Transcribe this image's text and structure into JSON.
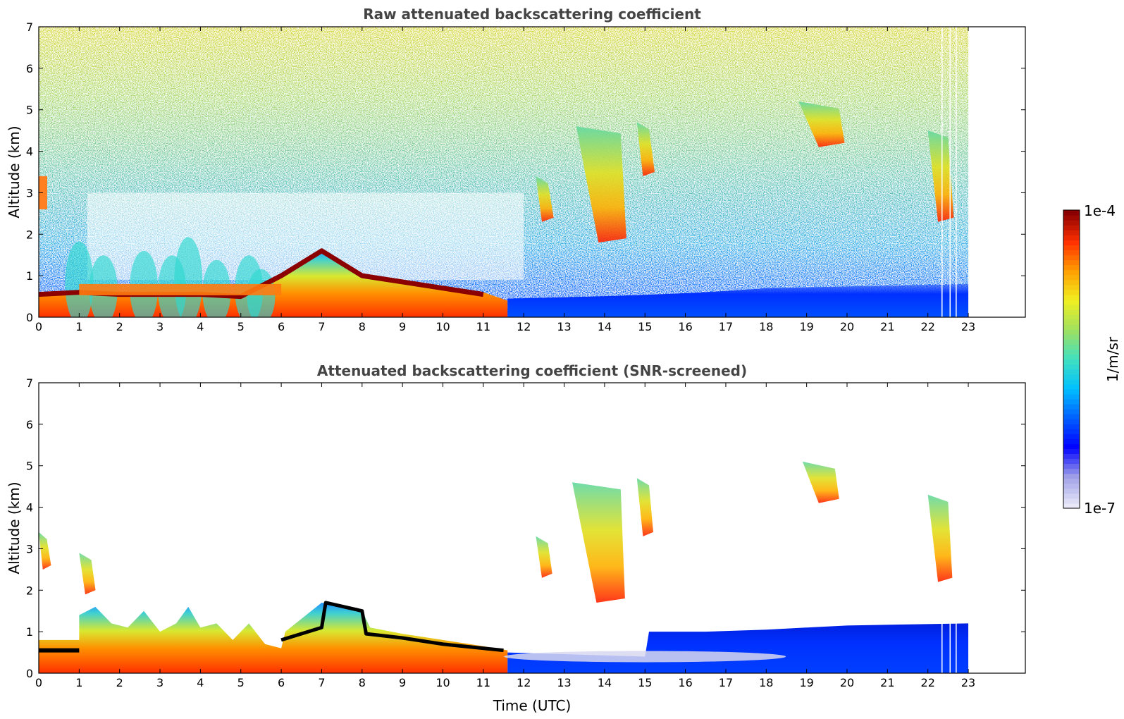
{
  "chart_data": [
    {
      "type": "heatmap",
      "title": "Raw attenuated backscattering coefficient",
      "xlabel": "",
      "ylabel": "Altitude (km)",
      "xlim": [
        0,
        24
      ],
      "ylim": [
        0,
        7
      ],
      "xticks": [
        "0",
        "1",
        "2",
        "3",
        "4",
        "5",
        "6",
        "7",
        "8",
        "9",
        "10",
        "11",
        "12",
        "13",
        "14",
        "15",
        "16",
        "17",
        "18",
        "19",
        "20",
        "21",
        "22",
        "23"
      ],
      "yticks": [
        "0",
        "1",
        "2",
        "3",
        "4",
        "5",
        "6",
        "7"
      ],
      "data_end_hour": 23,
      "boundary_layer_top_km": [
        {
          "x": 0,
          "y": 0.55
        },
        {
          "x": 1,
          "y": 0.6
        },
        {
          "x": 2,
          "y": 0.55
        },
        {
          "x": 3,
          "y": 0.55
        },
        {
          "x": 4,
          "y": 0.55
        },
        {
          "x": 5,
          "y": 0.5
        },
        {
          "x": 6,
          "y": 1.0
        },
        {
          "x": 7,
          "y": 1.6
        },
        {
          "x": 8,
          "y": 1.0
        },
        {
          "x": 9,
          "y": 0.85
        },
        {
          "x": 10,
          "y": 0.7
        },
        {
          "x": 11,
          "y": 0.55
        }
      ],
      "cloud_features": [
        {
          "t_start": 12.3,
          "t_end": 12.6,
          "z_bottom_km": 2.4,
          "z_top_km": 3.4
        },
        {
          "t_start": 13.3,
          "t_end": 14.4,
          "z_bottom_km": 1.9,
          "z_top_km": 4.6
        },
        {
          "t_start": 14.8,
          "t_end": 15.1,
          "z_bottom_km": 3.5,
          "z_top_km": 4.7
        },
        {
          "t_start": 18.8,
          "t_end": 19.8,
          "z_bottom_km": 4.2,
          "z_top_km": 5.2
        },
        {
          "t_start": 22.0,
          "t_end": 22.5,
          "z_bottom_km": 2.4,
          "z_top_km": 4.5
        }
      ]
    },
    {
      "type": "heatmap",
      "title": "Attenuated backscattering coefficient (SNR-screened)",
      "xlabel": "Time (UTC)",
      "ylabel": "Altitude (km)",
      "xlim": [
        0,
        24
      ],
      "ylim": [
        0,
        7
      ],
      "xticks": [
        "0",
        "1",
        "2",
        "3",
        "4",
        "5",
        "6",
        "7",
        "8",
        "9",
        "10",
        "11",
        "12",
        "13",
        "14",
        "15",
        "16",
        "17",
        "18",
        "19",
        "20",
        "21",
        "22",
        "23"
      ],
      "yticks": [
        "0",
        "1",
        "2",
        "3",
        "4",
        "5",
        "6",
        "7"
      ],
      "data_end_hour": 23,
      "cloud_features": [
        {
          "t_start": 0.0,
          "t_end": 0.2,
          "z_bottom_km": 2.6,
          "z_top_km": 3.4
        },
        {
          "t_start": 1.0,
          "t_end": 1.3,
          "z_bottom_km": 2.0,
          "z_top_km": 2.9
        },
        {
          "t_start": 12.3,
          "t_end": 12.6,
          "z_bottom_km": 2.4,
          "z_top_km": 3.3
        },
        {
          "t_start": 13.2,
          "t_end": 14.4,
          "z_bottom_km": 1.8,
          "z_top_km": 4.6
        },
        {
          "t_start": 14.8,
          "t_end": 15.1,
          "z_bottom_km": 3.4,
          "z_top_km": 4.7
        },
        {
          "t_start": 18.9,
          "t_end": 19.7,
          "z_bottom_km": 4.2,
          "z_top_km": 5.1
        },
        {
          "t_start": 22.0,
          "t_end": 22.5,
          "z_bottom_km": 2.3,
          "z_top_km": 4.3
        }
      ]
    }
  ],
  "colorbar": {
    "label": "1/m/sr",
    "max_label": "1e-4",
    "min_label": "1e-7",
    "scale": "log",
    "colormap": "jet",
    "stops": [
      "#e8e8f8",
      "#a0a0e8",
      "#0000ff",
      "#0060ff",
      "#00c0ff",
      "#40e0c0",
      "#a0e060",
      "#f0f020",
      "#ffa000",
      "#ff3000",
      "#8b0000"
    ]
  }
}
